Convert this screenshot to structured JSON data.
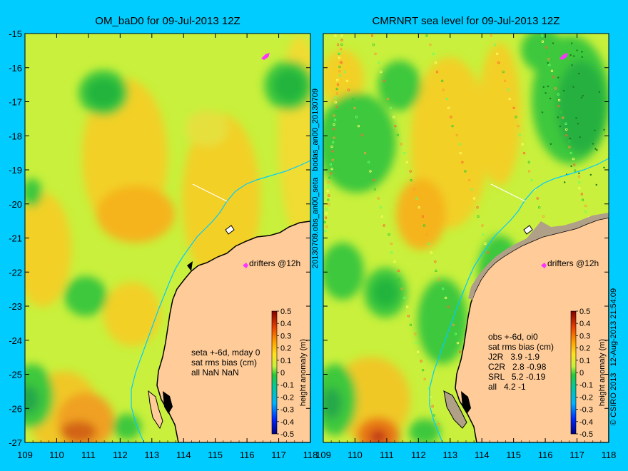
{
  "left_panel": {
    "title": "OM_baD0 for 09-Jul-2013 12Z",
    "info": [
      "seta +-6d, mday 0",
      "sat rms bias (cm)",
      "all NaN NaN"
    ],
    "drifters": "drifters @12h",
    "colorbar_label": "height anomaly (m)"
  },
  "right_panel": {
    "title": "CMRNRT sea level  for 09-Jul-2013 12Z",
    "info": [
      "obs +-6d, oi0",
      "sat rms bias (cm)",
      "J2R   3.9 -1.9",
      "C2R   2.8 -0.98",
      "SRL   5.2 -0.19",
      "all   4.2 -1"
    ],
    "drifters": "drifters @12h",
    "colorbar_label": "height anomaly (m)"
  },
  "center_label": "20130709.obs_an00_seta   bodas_an00_20130709",
  "copyright": "© CSIRO 2013   12-Aug-2013 21:54:09",
  "chart_data": [
    {
      "type": "heatmap",
      "title": "OM_baD0 for 09-Jul-2013 12Z",
      "x_ticks": [
        109,
        110,
        111,
        112,
        113,
        114,
        115,
        116,
        117,
        118
      ],
      "y_ticks": [
        -15,
        -16,
        -17,
        -18,
        -19,
        -20,
        -21,
        -22,
        -23,
        -24,
        -25,
        -26,
        -27
      ],
      "xlim": [
        109,
        118
      ],
      "ylim": [
        -27,
        -15
      ],
      "colorbar": {
        "label": "height anomaly (m)",
        "range": [
          -0.5,
          0.5
        ],
        "ticks": [
          0.5,
          0.4,
          0.3,
          0.2,
          0.1,
          0,
          -0.1,
          -0.2,
          -0.3,
          -0.4,
          -0.5
        ]
      }
    },
    {
      "type": "heatmap",
      "title": "CMRNRT sea level  for 09-Jul-2013 12Z",
      "x_ticks": [
        109,
        110,
        111,
        112,
        113,
        114,
        115,
        116,
        117,
        118
      ],
      "y_ticks": [
        -15,
        -16,
        -17,
        -18,
        -19,
        -20,
        -21,
        -22,
        -23,
        -24,
        -25,
        -26,
        -27
      ],
      "xlim": [
        109,
        118
      ],
      "ylim": [
        -27,
        -15
      ],
      "colorbar": {
        "label": "height anomaly (m)",
        "range": [
          -0.5,
          0.5
        ],
        "ticks": [
          0.5,
          0.4,
          0.3,
          0.2,
          0.1,
          0,
          -0.1,
          -0.2,
          -0.3,
          -0.4,
          -0.5
        ]
      }
    }
  ],
  "colors": {
    "background": "#00ccff",
    "base_field": "#c8f03c",
    "warm": "#f5c820",
    "green": "#28c83c",
    "land": "#ffcc99",
    "coast": "#000000",
    "drifter": "#ff33ff"
  }
}
